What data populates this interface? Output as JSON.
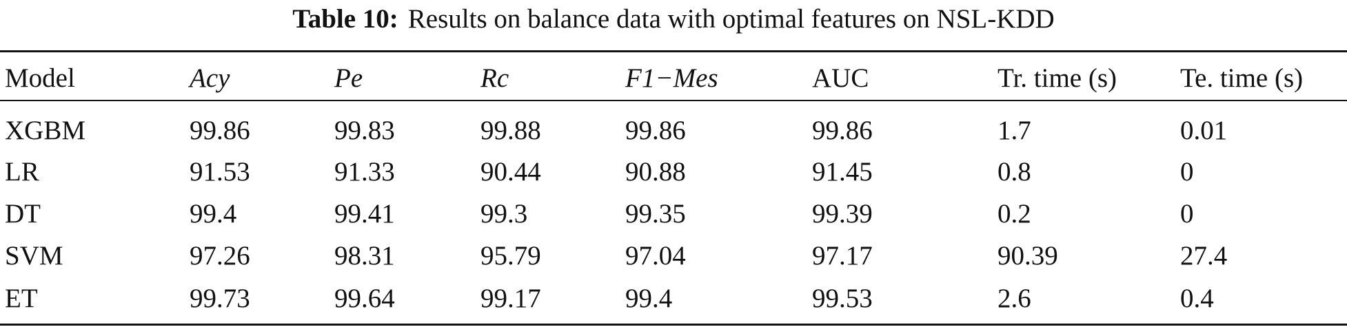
{
  "caption": {
    "label": "Table 10:",
    "text": "Results on balance data with optimal features on NSL-KDD"
  },
  "table": {
    "headers": [
      "Model",
      "Acy",
      "Pe",
      "Rc",
      "F1−Mes",
      "AUC",
      "Tr. time (s)",
      "Te. time (s)"
    ],
    "rows": [
      [
        "XGBM",
        "99.86",
        "99.83",
        "99.88",
        "99.86",
        "99.86",
        "1.7",
        "0.01"
      ],
      [
        "LR",
        "91.53",
        "91.33",
        "90.44",
        "90.88",
        "91.45",
        "0.8",
        "0"
      ],
      [
        "DT",
        "99.4",
        "99.41",
        "99.3",
        "99.35",
        "99.39",
        "0.2",
        "0"
      ],
      [
        "SVM",
        "97.26",
        "98.31",
        "95.79",
        "97.04",
        "97.17",
        "90.39",
        "27.4"
      ],
      [
        "ET",
        "99.73",
        "99.64",
        "99.17",
        "99.4",
        "99.53",
        "2.6",
        "0.4"
      ]
    ]
  }
}
